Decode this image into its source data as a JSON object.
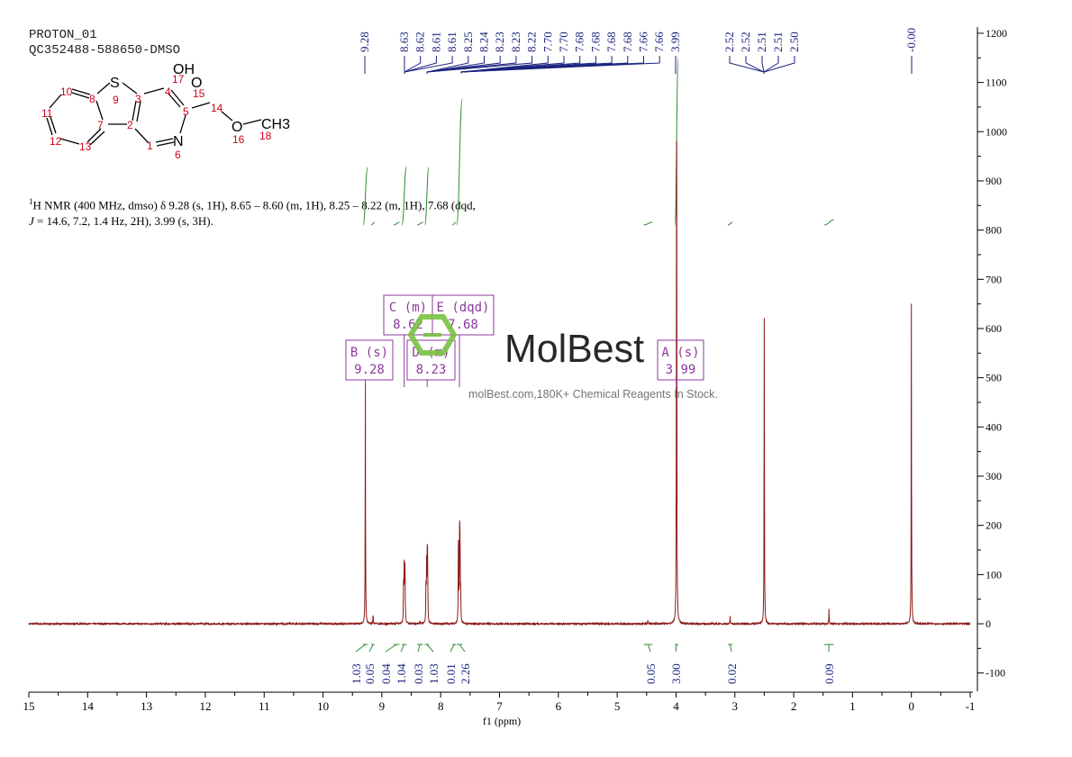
{
  "header": {
    "experiment": "PROTON_01",
    "sample": "QC352488-588650-DMSO"
  },
  "description": {
    "line1_sup": "1",
    "line1": "H NMR (400 MHz, dmso) δ 9.28 (s, 1H), 8.65 – 8.60 (m, 1H), 8.25 – 8.22 (m, 1H), 7.68 (dqd,",
    "line2_j": "J",
    "line2": " = 14.6, 7.2, 1.4 Hz, 2H), 3.99 (s, 3H)."
  },
  "structure": {
    "atoms": [
      "S",
      "OH",
      "O",
      "O",
      "CH3",
      "N"
    ],
    "numbers": [
      "10",
      "8",
      "9",
      "3",
      "4",
      "17",
      "15",
      "14",
      "5",
      "16",
      "18",
      "11",
      "7",
      "2",
      "12",
      "13",
      "1",
      "6"
    ],
    "colors": {
      "atom": "#000000",
      "number": "#d0021b"
    }
  },
  "watermark": {
    "logo_text": "MolBest",
    "tagline": "molBest.com,180K+ Chemical Reagents In Stock.",
    "color": "#7ac143"
  },
  "chart_data": {
    "type": "line",
    "xlabel": "f1 (ppm)",
    "xlim": [
      15,
      -1
    ],
    "x_reversed": true,
    "ylim": [
      -130,
      1210
    ],
    "x_ticks": [
      "15",
      "14",
      "13",
      "12",
      "11",
      "10",
      "9",
      "8",
      "7",
      "6",
      "5",
      "4",
      "3",
      "2",
      "1",
      "0",
      "-1"
    ],
    "y_ticks": [
      "1200",
      "1100",
      "1000",
      "900",
      "800",
      "700",
      "600",
      "500",
      "400",
      "300",
      "200",
      "100",
      "0",
      "-100"
    ],
    "y_axis_side": "right",
    "grid": false,
    "colors": {
      "spectrum": "#8b1a1a",
      "peak_labels": "#1a237e",
      "integrals": "#2e8b2e",
      "multiplets": "#8e3a9e"
    },
    "peaks": [
      {
        "ppm": 9.28,
        "height": 490
      },
      {
        "ppm": 9.15,
        "height": 20
      },
      {
        "ppm": 8.75,
        "height": 4
      },
      {
        "ppm": 8.63,
        "height": 95
      },
      {
        "ppm": 8.62,
        "height": 105
      },
      {
        "ppm": 8.61,
        "height": 90
      },
      {
        "ppm": 8.605,
        "height": 80
      },
      {
        "ppm": 8.35,
        "height": 4
      },
      {
        "ppm": 8.25,
        "height": 85
      },
      {
        "ppm": 8.24,
        "height": 110
      },
      {
        "ppm": 8.23,
        "height": 115
      },
      {
        "ppm": 8.225,
        "height": 95
      },
      {
        "ppm": 8.22,
        "height": 70
      },
      {
        "ppm": 7.7,
        "height": 110
      },
      {
        "ppm": 7.695,
        "height": 120
      },
      {
        "ppm": 7.68,
        "height": 130
      },
      {
        "ppm": 7.675,
        "height": 125
      },
      {
        "ppm": 7.67,
        "height": 115
      },
      {
        "ppm": 7.66,
        "height": 60
      },
      {
        "ppm": 4.48,
        "height": 8
      },
      {
        "ppm": 3.99,
        "height": 1300
      },
      {
        "ppm": 3.08,
        "height": 15
      },
      {
        "ppm": 2.5,
        "height": 620
      },
      {
        "ppm": 1.4,
        "height": 30
      },
      {
        "ppm": 0.0,
        "height": 650
      }
    ],
    "peak_labels": [
      {
        "text": "9.28",
        "ppm": 9.28
      },
      {
        "text": "8.63",
        "ppm": 8.63
      },
      {
        "text": "8.62",
        "ppm": 8.62
      },
      {
        "text": "8.61",
        "ppm": 8.61
      },
      {
        "text": "8.61",
        "ppm": 8.605
      },
      {
        "text": "8.25",
        "ppm": 8.25
      },
      {
        "text": "8.24",
        "ppm": 8.24
      },
      {
        "text": "8.23",
        "ppm": 8.23
      },
      {
        "text": "8.23",
        "ppm": 8.225
      },
      {
        "text": "8.22",
        "ppm": 8.22
      },
      {
        "text": "7.70",
        "ppm": 7.7
      },
      {
        "text": "7.70",
        "ppm": 7.695
      },
      {
        "text": "7.68",
        "ppm": 7.68
      },
      {
        "text": "7.68",
        "ppm": 7.678
      },
      {
        "text": "7.68",
        "ppm": 7.675
      },
      {
        "text": "7.68",
        "ppm": 7.672
      },
      {
        "text": "7.66",
        "ppm": 7.665
      },
      {
        "text": "7.66",
        "ppm": 7.66
      },
      {
        "text": "3.99",
        "ppm": 3.99
      },
      {
        "text": "2.52",
        "ppm": 2.52
      },
      {
        "text": "2.52",
        "ppm": 2.515
      },
      {
        "text": "2.51",
        "ppm": 2.51
      },
      {
        "text": "2.51",
        "ppm": 2.505
      },
      {
        "text": "2.50",
        "ppm": 2.5
      },
      {
        "text": "-0.00",
        "ppm": 0.0
      }
    ],
    "integrals": [
      {
        "value": "1.03",
        "from": 9.32,
        "to": 9.24
      },
      {
        "value": "0.05",
        "from": 9.18,
        "to": 9.12
      },
      {
        "value": "0.04",
        "from": 8.8,
        "to": 8.7
      },
      {
        "value": "1.04",
        "from": 8.66,
        "to": 8.58
      },
      {
        "value": "0.03",
        "from": 8.4,
        "to": 8.3
      },
      {
        "value": "1.03",
        "from": 8.27,
        "to": 8.2
      },
      {
        "value": "0.01",
        "from": 7.8,
        "to": 7.74
      },
      {
        "value": "2.26",
        "from": 7.73,
        "to": 7.63
      },
      {
        "value": "0.05",
        "from": 4.55,
        "to": 4.4
      },
      {
        "value": "3.00",
        "from": 4.02,
        "to": 3.96
      },
      {
        "value": "0.02",
        "from": 3.12,
        "to": 3.04
      },
      {
        "value": "0.09",
        "from": 1.48,
        "to": 1.32
      }
    ],
    "multiplets": [
      {
        "label": "B (s)",
        "shift": "9.28",
        "ppm": 9.28
      },
      {
        "label": "C (m)",
        "shift": "8.62",
        "ppm": 8.62
      },
      {
        "label": "D (m)",
        "shift": "8.23",
        "ppm": 8.23
      },
      {
        "label": "E (dqd)",
        "shift": "7.68",
        "ppm": 7.68
      },
      {
        "label": "A (s)",
        "shift": "3.99",
        "ppm": 3.99
      }
    ]
  }
}
